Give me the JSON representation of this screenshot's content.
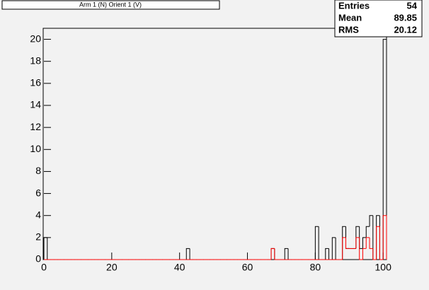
{
  "chart_data": {
    "type": "histogram",
    "title": "Arm 1 (N) Orient 1 (V)",
    "stats": [
      {
        "label": "Entries",
        "value": "54"
      },
      {
        "label": "Mean",
        "value": "89.85"
      },
      {
        "label": "RMS",
        "value": "20.12"
      }
    ],
    "bins": [
      0,
      1,
      2,
      3,
      4,
      5,
      6,
      7,
      8,
      9,
      10,
      11,
      12,
      13,
      14,
      15,
      16,
      17,
      18,
      19,
      20,
      21,
      22,
      23,
      24,
      25,
      26,
      27,
      28,
      29,
      30,
      31,
      32,
      33,
      34,
      35,
      36,
      37,
      38,
      39,
      40,
      41,
      42,
      43,
      44,
      45,
      46,
      47,
      48,
      49,
      50,
      51,
      52,
      53,
      54,
      55,
      56,
      57,
      58,
      59,
      60,
      61,
      62,
      63,
      64,
      65,
      66,
      67,
      68,
      69,
      70,
      71,
      72,
      73,
      74,
      75,
      76,
      77,
      78,
      79,
      80,
      81,
      82,
      83,
      84,
      85,
      86,
      87,
      88,
      89,
      90,
      91,
      92,
      93,
      94,
      95,
      96,
      97,
      98,
      99,
      100,
      101
    ],
    "series": [
      {
        "color": "#000000",
        "values": [
          2,
          0,
          0,
          0,
          0,
          0,
          0,
          0,
          0,
          0,
          0,
          0,
          0,
          0,
          0,
          0,
          0,
          0,
          0,
          0,
          0,
          0,
          0,
          0,
          0,
          0,
          0,
          0,
          0,
          0,
          0,
          0,
          0,
          0,
          0,
          0,
          0,
          0,
          0,
          0,
          0,
          0,
          1,
          0,
          0,
          0,
          0,
          0,
          0,
          0,
          0,
          0,
          0,
          0,
          0,
          0,
          0,
          0,
          0,
          0,
          0,
          0,
          0,
          0,
          0,
          0,
          0,
          1,
          0,
          0,
          0,
          1,
          0,
          0,
          0,
          0,
          0,
          0,
          0,
          0,
          3,
          0,
          0,
          1,
          0,
          2,
          0,
          0,
          3,
          1,
          1,
          1,
          3,
          1,
          2,
          3,
          4,
          0,
          4,
          0,
          20
        ]
      },
      {
        "color": "#ff0000",
        "values": [
          0,
          0,
          0,
          0,
          0,
          0,
          0,
          0,
          0,
          0,
          0,
          0,
          0,
          0,
          0,
          0,
          0,
          0,
          0,
          0,
          0,
          0,
          0,
          0,
          0,
          0,
          0,
          0,
          0,
          0,
          0,
          0,
          0,
          0,
          0,
          0,
          0,
          0,
          0,
          0,
          0,
          0,
          0,
          0,
          0,
          0,
          0,
          0,
          0,
          0,
          0,
          0,
          0,
          0,
          0,
          0,
          0,
          0,
          0,
          0,
          0,
          0,
          0,
          0,
          0,
          0,
          0,
          1,
          0,
          0,
          0,
          0,
          0,
          0,
          0,
          0,
          0,
          0,
          0,
          0,
          0,
          0,
          0,
          0,
          0,
          0,
          0,
          0,
          2,
          1,
          1,
          1,
          2,
          0,
          1,
          2,
          1,
          0,
          3,
          0,
          4
        ]
      }
    ],
    "xlim": [
      0,
      101
    ],
    "ylim": [
      0,
      21
    ],
    "xticks": [
      0,
      20,
      40,
      60,
      80,
      100
    ],
    "yticks": [
      0,
      2,
      4,
      6,
      8,
      10,
      12,
      14,
      16,
      18,
      20
    ]
  }
}
